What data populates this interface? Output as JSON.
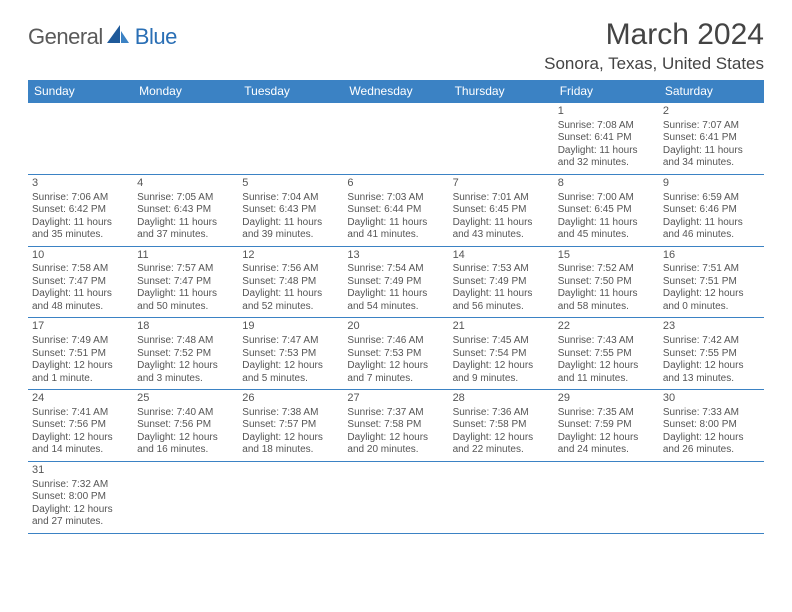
{
  "logo": {
    "general": "General",
    "blue": "Blue"
  },
  "title": "March 2024",
  "location": "Sonora, Texas, United States",
  "colors": {
    "header_bg": "#3b82c4",
    "header_text": "#ffffff",
    "border": "#3b82c4",
    "body_text": "#555555",
    "title_text": "#444444",
    "logo_gray": "#5a5a5a",
    "logo_blue": "#2a6fb5",
    "page_bg": "#ffffff"
  },
  "day_headers": [
    "Sunday",
    "Monday",
    "Tuesday",
    "Wednesday",
    "Thursday",
    "Friday",
    "Saturday"
  ],
  "weeks": [
    [
      null,
      null,
      null,
      null,
      null,
      {
        "n": "1",
        "sr": "Sunrise: 7:08 AM",
        "ss": "Sunset: 6:41 PM",
        "d1": "Daylight: 11 hours",
        "d2": "and 32 minutes."
      },
      {
        "n": "2",
        "sr": "Sunrise: 7:07 AM",
        "ss": "Sunset: 6:41 PM",
        "d1": "Daylight: 11 hours",
        "d2": "and 34 minutes."
      }
    ],
    [
      {
        "n": "3",
        "sr": "Sunrise: 7:06 AM",
        "ss": "Sunset: 6:42 PM",
        "d1": "Daylight: 11 hours",
        "d2": "and 35 minutes."
      },
      {
        "n": "4",
        "sr": "Sunrise: 7:05 AM",
        "ss": "Sunset: 6:43 PM",
        "d1": "Daylight: 11 hours",
        "d2": "and 37 minutes."
      },
      {
        "n": "5",
        "sr": "Sunrise: 7:04 AM",
        "ss": "Sunset: 6:43 PM",
        "d1": "Daylight: 11 hours",
        "d2": "and 39 minutes."
      },
      {
        "n": "6",
        "sr": "Sunrise: 7:03 AM",
        "ss": "Sunset: 6:44 PM",
        "d1": "Daylight: 11 hours",
        "d2": "and 41 minutes."
      },
      {
        "n": "7",
        "sr": "Sunrise: 7:01 AM",
        "ss": "Sunset: 6:45 PM",
        "d1": "Daylight: 11 hours",
        "d2": "and 43 minutes."
      },
      {
        "n": "8",
        "sr": "Sunrise: 7:00 AM",
        "ss": "Sunset: 6:45 PM",
        "d1": "Daylight: 11 hours",
        "d2": "and 45 minutes."
      },
      {
        "n": "9",
        "sr": "Sunrise: 6:59 AM",
        "ss": "Sunset: 6:46 PM",
        "d1": "Daylight: 11 hours",
        "d2": "and 46 minutes."
      }
    ],
    [
      {
        "n": "10",
        "sr": "Sunrise: 7:58 AM",
        "ss": "Sunset: 7:47 PM",
        "d1": "Daylight: 11 hours",
        "d2": "and 48 minutes."
      },
      {
        "n": "11",
        "sr": "Sunrise: 7:57 AM",
        "ss": "Sunset: 7:47 PM",
        "d1": "Daylight: 11 hours",
        "d2": "and 50 minutes."
      },
      {
        "n": "12",
        "sr": "Sunrise: 7:56 AM",
        "ss": "Sunset: 7:48 PM",
        "d1": "Daylight: 11 hours",
        "d2": "and 52 minutes."
      },
      {
        "n": "13",
        "sr": "Sunrise: 7:54 AM",
        "ss": "Sunset: 7:49 PM",
        "d1": "Daylight: 11 hours",
        "d2": "and 54 minutes."
      },
      {
        "n": "14",
        "sr": "Sunrise: 7:53 AM",
        "ss": "Sunset: 7:49 PM",
        "d1": "Daylight: 11 hours",
        "d2": "and 56 minutes."
      },
      {
        "n": "15",
        "sr": "Sunrise: 7:52 AM",
        "ss": "Sunset: 7:50 PM",
        "d1": "Daylight: 11 hours",
        "d2": "and 58 minutes."
      },
      {
        "n": "16",
        "sr": "Sunrise: 7:51 AM",
        "ss": "Sunset: 7:51 PM",
        "d1": "Daylight: 12 hours",
        "d2": "and 0 minutes."
      }
    ],
    [
      {
        "n": "17",
        "sr": "Sunrise: 7:49 AM",
        "ss": "Sunset: 7:51 PM",
        "d1": "Daylight: 12 hours",
        "d2": "and 1 minute."
      },
      {
        "n": "18",
        "sr": "Sunrise: 7:48 AM",
        "ss": "Sunset: 7:52 PM",
        "d1": "Daylight: 12 hours",
        "d2": "and 3 minutes."
      },
      {
        "n": "19",
        "sr": "Sunrise: 7:47 AM",
        "ss": "Sunset: 7:53 PM",
        "d1": "Daylight: 12 hours",
        "d2": "and 5 minutes."
      },
      {
        "n": "20",
        "sr": "Sunrise: 7:46 AM",
        "ss": "Sunset: 7:53 PM",
        "d1": "Daylight: 12 hours",
        "d2": "and 7 minutes."
      },
      {
        "n": "21",
        "sr": "Sunrise: 7:45 AM",
        "ss": "Sunset: 7:54 PM",
        "d1": "Daylight: 12 hours",
        "d2": "and 9 minutes."
      },
      {
        "n": "22",
        "sr": "Sunrise: 7:43 AM",
        "ss": "Sunset: 7:55 PM",
        "d1": "Daylight: 12 hours",
        "d2": "and 11 minutes."
      },
      {
        "n": "23",
        "sr": "Sunrise: 7:42 AM",
        "ss": "Sunset: 7:55 PM",
        "d1": "Daylight: 12 hours",
        "d2": "and 13 minutes."
      }
    ],
    [
      {
        "n": "24",
        "sr": "Sunrise: 7:41 AM",
        "ss": "Sunset: 7:56 PM",
        "d1": "Daylight: 12 hours",
        "d2": "and 14 minutes."
      },
      {
        "n": "25",
        "sr": "Sunrise: 7:40 AM",
        "ss": "Sunset: 7:56 PM",
        "d1": "Daylight: 12 hours",
        "d2": "and 16 minutes."
      },
      {
        "n": "26",
        "sr": "Sunrise: 7:38 AM",
        "ss": "Sunset: 7:57 PM",
        "d1": "Daylight: 12 hours",
        "d2": "and 18 minutes."
      },
      {
        "n": "27",
        "sr": "Sunrise: 7:37 AM",
        "ss": "Sunset: 7:58 PM",
        "d1": "Daylight: 12 hours",
        "d2": "and 20 minutes."
      },
      {
        "n": "28",
        "sr": "Sunrise: 7:36 AM",
        "ss": "Sunset: 7:58 PM",
        "d1": "Daylight: 12 hours",
        "d2": "and 22 minutes."
      },
      {
        "n": "29",
        "sr": "Sunrise: 7:35 AM",
        "ss": "Sunset: 7:59 PM",
        "d1": "Daylight: 12 hours",
        "d2": "and 24 minutes."
      },
      {
        "n": "30",
        "sr": "Sunrise: 7:33 AM",
        "ss": "Sunset: 8:00 PM",
        "d1": "Daylight: 12 hours",
        "d2": "and 26 minutes."
      }
    ],
    [
      {
        "n": "31",
        "sr": "Sunrise: 7:32 AM",
        "ss": "Sunset: 8:00 PM",
        "d1": "Daylight: 12 hours",
        "d2": "and 27 minutes."
      },
      null,
      null,
      null,
      null,
      null,
      null
    ]
  ]
}
